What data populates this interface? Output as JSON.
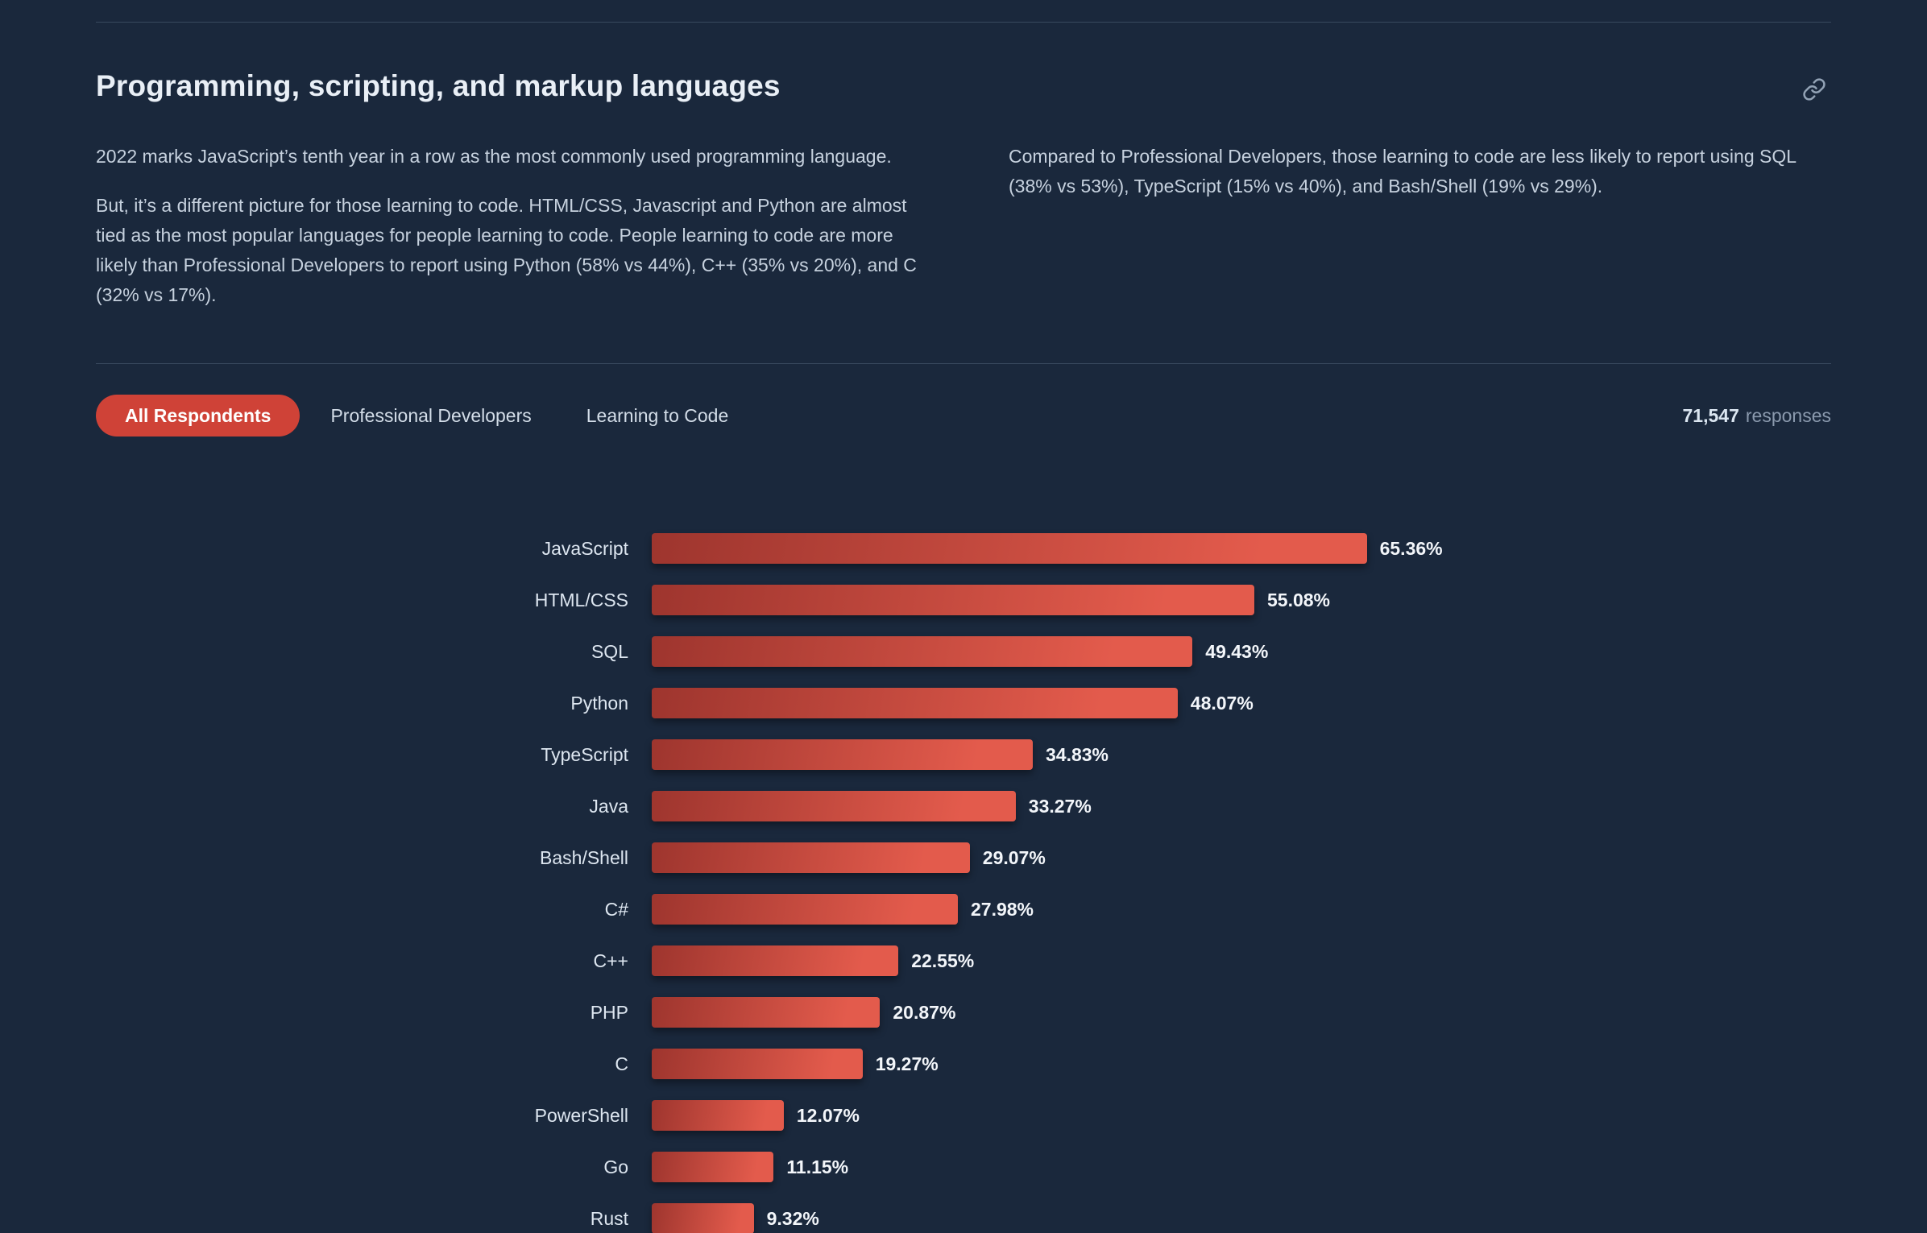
{
  "theme": {
    "background": "#1a283c",
    "accent_red": "#cf4237",
    "bar_gradient_start": "#9e352e",
    "bar_gradient_end": "#e35b4c"
  },
  "header": {
    "title": "Programming, scripting, and markup languages"
  },
  "intro": {
    "left_paragraph_1": "2022 marks JavaScript’s tenth year in a row as the most commonly used programming language.",
    "left_paragraph_2": "But, it’s a different picture for those learning to code. HTML/CSS, Javascript and Python are almost tied as the most popular languages for people learning to code. People learning to code are more likely than Professional Developers to report using Python (58% vs 44%), C++ (35% vs 20%), and C (32% vs 17%).",
    "right_paragraph_1": "Compared to Professional Developers, those learning to code are less likely to report using SQL (38% vs 53%), TypeScript (15% vs 40%), and Bash/Shell (19% vs 29%)."
  },
  "tabs": [
    {
      "label": "All Respondents",
      "active": true
    },
    {
      "label": "Professional Developers",
      "active": false
    },
    {
      "label": "Learning to Code",
      "active": false
    }
  ],
  "responses": {
    "count": "71,547",
    "label": "responses"
  },
  "chart_data": {
    "type": "bar",
    "orientation": "horizontal",
    "title": "Programming, scripting, and markup languages — All Respondents",
    "value_suffix": "%",
    "xlim": [
      0,
      100
    ],
    "grid": false,
    "legend": "none",
    "categories": [
      "JavaScript",
      "HTML/CSS",
      "SQL",
      "Python",
      "TypeScript",
      "Java",
      "Bash/Shell",
      "C#",
      "C++",
      "PHP",
      "C",
      "PowerShell",
      "Go",
      "Rust"
    ],
    "values": [
      65.36,
      55.08,
      49.43,
      48.07,
      34.83,
      33.27,
      29.07,
      27.98,
      22.55,
      20.87,
      19.27,
      12.07,
      11.15,
      9.32
    ]
  }
}
